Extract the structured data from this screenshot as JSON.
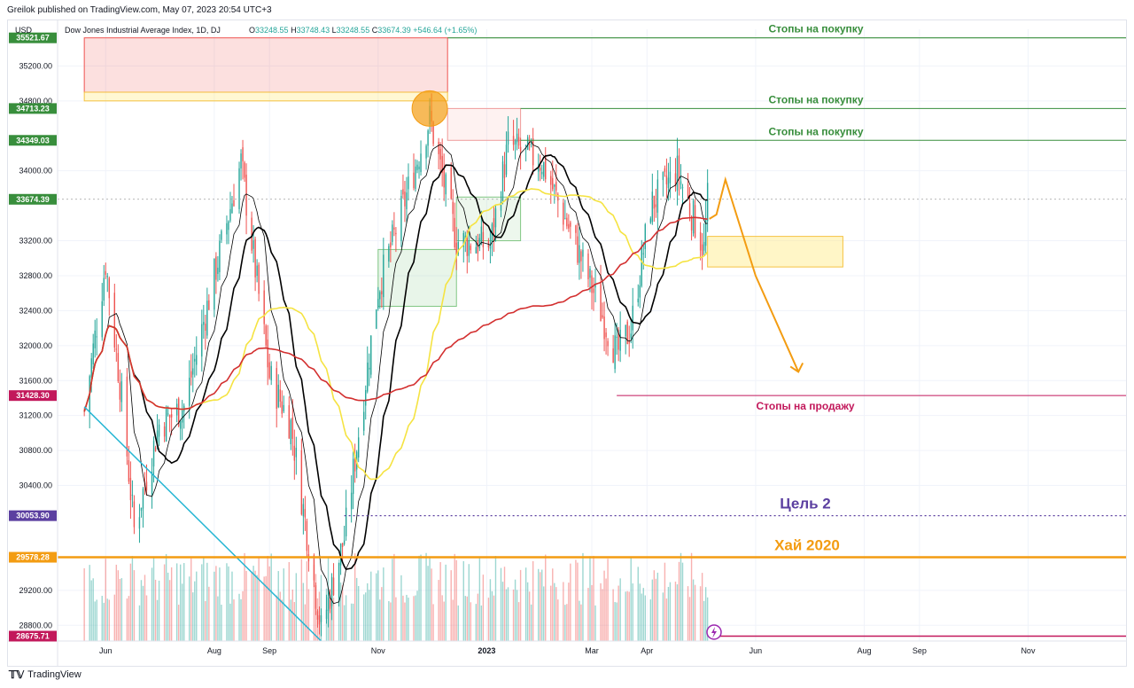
{
  "header": {
    "published": "Greilok published on TradingView.com, May 07, 2023 20:54 UTC+3"
  },
  "footer": {
    "logo_text": "TradingView"
  },
  "colors": {
    "green_line": "#388e3c",
    "red_line": "#c2185b",
    "orange": "#f39c12",
    "purple": "#5b3fa0",
    "candle_up": "#26a69a",
    "candle_down": "#ef5350",
    "ma_fast": "#000000",
    "ma_mid": "#000000",
    "ma_yellow": "#f5e342",
    "ma_red": "#d32f2f",
    "trend_line": "#26b6d4"
  },
  "chart_data": {
    "type": "candlestick",
    "symbol_line": "Dow Jones Industrial Average Index, 1D, DJ",
    "ohlc": {
      "o_label": "O",
      "o": "33248.55",
      "h_label": "H",
      "h": "33748.43",
      "l_label": "L",
      "l": "33248.55",
      "c_label": "C",
      "c": "33674.39",
      "change": "+546.64 (+1.65%)"
    },
    "currency": "USD",
    "y_ticks": [
      "35200.00",
      "34800.00",
      "34000.00",
      "33200.00",
      "32800.00",
      "32400.00",
      "32000.00",
      "31600.00",
      "31200.00",
      "30800.00",
      "30400.00",
      "29200.00",
      "28800.00"
    ],
    "y_tick_values": [
      35200,
      34800,
      34000,
      33200,
      32800,
      32400,
      32000,
      31600,
      31200,
      30800,
      30400,
      29200,
      28800
    ],
    "x_ticks": [
      "Jun",
      "Aug",
      "Sep",
      "Nov",
      "2023",
      "Mar",
      "Apr",
      "Jun",
      "Aug",
      "Sep",
      "Nov"
    ],
    "x_tick_dates": [
      "2022-06-01",
      "2022-08-01",
      "2022-09-01",
      "2022-11-01",
      "2023-01-01",
      "2023-03-01",
      "2023-04-01",
      "2023-06-01",
      "2023-08-01",
      "2023-09-01",
      "2023-11-01"
    ],
    "ylim": [
      28620,
      35620
    ],
    "xlim": [
      "2022-05-05",
      "2023-12-26"
    ],
    "price_levels": [
      {
        "label": "35521.67",
        "value": 35521.67,
        "color": "#388e3c"
      },
      {
        "label": "34713.23",
        "value": 34713.23,
        "color": "#388e3c"
      },
      {
        "label": "34349.03",
        "value": 34349.03,
        "color": "#388e3c"
      },
      {
        "label": "33674.39",
        "value": 33674.39,
        "color": "#388e3c"
      },
      {
        "label": "31428.30",
        "value": 31428.3,
        "color": "#c2185b"
      },
      {
        "label": "30053.90",
        "value": 30053.9,
        "color": "#5b3fa0"
      },
      {
        "label": "29578.28",
        "value": 29578.28,
        "color": "#f39c12"
      },
      {
        "label": "28675.71",
        "value": 28675.71,
        "color": "#c2185b"
      }
    ],
    "annotations": [
      {
        "text": "Стопы на покупку",
        "level": 35521.67,
        "color": "#388e3c"
      },
      {
        "text": "Стопы на покупку",
        "level": 34713.23,
        "color": "#388e3c"
      },
      {
        "text": "Стопы на покупку",
        "level": 34349.03,
        "color": "#388e3c"
      },
      {
        "text": "Стопы на продажу",
        "level": 31428.3,
        "color": "#c2185b"
      },
      {
        "text": "Цель 2",
        "level": 30053.9,
        "color": "#5b3fa0"
      },
      {
        "text": "Хай 2020",
        "level": 29578.28,
        "color": "#f39c12"
      }
    ],
    "close_series_approx": [
      {
        "x": "2022-05-20",
        "y": 31250
      },
      {
        "x": "2022-06-01",
        "y": 32950
      },
      {
        "x": "2022-06-10",
        "y": 31400
      },
      {
        "x": "2022-06-17",
        "y": 29900
      },
      {
        "x": "2022-07-01",
        "y": 31100
      },
      {
        "x": "2022-07-15",
        "y": 31300
      },
      {
        "x": "2022-08-01",
        "y": 32800
      },
      {
        "x": "2022-08-16",
        "y": 34100
      },
      {
        "x": "2022-09-01",
        "y": 31650
      },
      {
        "x": "2022-09-13",
        "y": 31100
      },
      {
        "x": "2022-09-30",
        "y": 28750
      },
      {
        "x": "2022-10-13",
        "y": 29800
      },
      {
        "x": "2022-11-01",
        "y": 32650
      },
      {
        "x": "2022-11-30",
        "y": 34600
      },
      {
        "x": "2022-12-15",
        "y": 33200
      },
      {
        "x": "2023-01-03",
        "y": 33150
      },
      {
        "x": "2023-01-13",
        "y": 34300
      },
      {
        "x": "2023-02-01",
        "y": 34100
      },
      {
        "x": "2023-02-22",
        "y": 33050
      },
      {
        "x": "2023-03-15",
        "y": 31900
      },
      {
        "x": "2023-03-23",
        "y": 32200
      },
      {
        "x": "2023-04-03",
        "y": 33600
      },
      {
        "x": "2023-04-18",
        "y": 34000
      },
      {
        "x": "2023-05-03",
        "y": 33100
      },
      {
        "x": "2023-05-05",
        "y": 33674
      }
    ],
    "forecast_path": [
      {
        "x": "2023-05-06",
        "y": 33450
      },
      {
        "x": "2023-05-10",
        "y": 33500
      },
      {
        "x": "2023-05-15",
        "y": 33900
      },
      {
        "x": "2023-06-01",
        "y": 32800
      },
      {
        "x": "2023-06-25",
        "y": 31700
      }
    ]
  }
}
